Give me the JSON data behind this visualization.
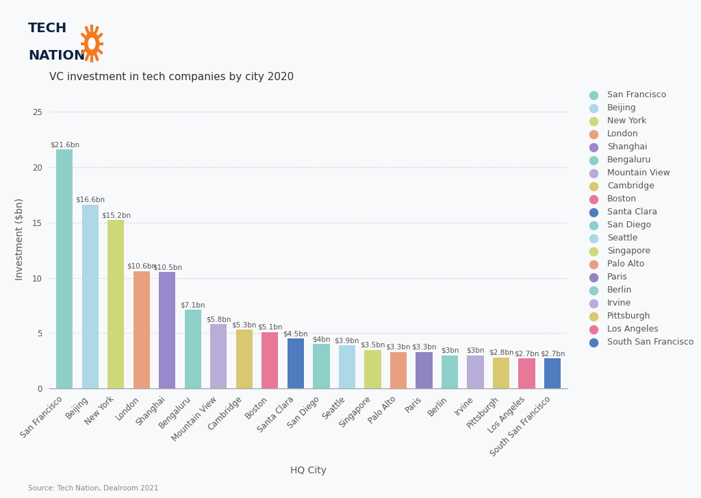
{
  "title": "VC investment in tech companies by city 2020",
  "xlabel": "HQ City",
  "ylabel": "Investment ($bn)",
  "source": "Source: Tech Nation, Dealroom 2021",
  "ylim": [
    0,
    27
  ],
  "yticks": [
    0,
    5,
    10,
    15,
    20,
    25
  ],
  "background_color": "#f8f9fb",
  "cities": [
    "San Francisco",
    "Beijing",
    "New York",
    "London",
    "Shanghai",
    "Bengaluru",
    "Mountain View",
    "Cambridge",
    "Boston",
    "Santa Clara",
    "San Diego",
    "Seattle",
    "Singapore",
    "Palo Alto",
    "Paris",
    "Berlin",
    "Irvine",
    "Pittsburgh",
    "Los Angeles",
    "South San Francisco"
  ],
  "values": [
    21.6,
    16.6,
    15.2,
    10.6,
    10.5,
    7.1,
    5.8,
    5.3,
    5.1,
    4.5,
    4.0,
    3.9,
    3.5,
    3.3,
    3.3,
    3.0,
    3.0,
    2.8,
    2.7,
    2.7
  ],
  "labels": [
    "$21.6bn",
    "$16.6bn",
    "$15.2bn",
    "$10.6bn",
    "$10.5bn",
    "$7.1bn",
    "$5.8bn",
    "$5.3bn",
    "$5.1bn",
    "$4.5bn",
    "$4bn",
    "$3.9bn",
    "$3.5bn",
    "$3.3bn",
    "$3.3bn",
    "$3bn",
    "$3bn",
    "$2.8bn",
    "$2.7bn",
    "$2.7bn"
  ],
  "colors": [
    "#8ecfc9",
    "#acd8e8",
    "#cdd87a",
    "#e8a080",
    "#9988cc",
    "#8ecfc9",
    "#b8acd8",
    "#d8c870",
    "#e87898",
    "#4f7bbf",
    "#8ecfc9",
    "#acd8e8",
    "#cdd87a",
    "#e8a080",
    "#9085bf",
    "#8ecfc9",
    "#b8acd8",
    "#d8c870",
    "#e87898",
    "#4f7bbf"
  ],
  "legend_colors": [
    "#8ecfc9",
    "#acd8e8",
    "#cdd87a",
    "#e8a080",
    "#9988cc",
    "#8ecfc9",
    "#b8acd8",
    "#d8c870",
    "#e87898",
    "#4f7bbf",
    "#8ecfc9",
    "#acd8e8",
    "#cdd87a",
    "#e8a080",
    "#9085bf",
    "#8ecfc9",
    "#b8acd8",
    "#d8c870",
    "#e87898",
    "#4f7bbf"
  ],
  "grid_color": "#c0c0c8",
  "title_color": "#333333",
  "label_color": "#555555",
  "tick_color": "#555555",
  "bar_label_fontsize": 7.5,
  "title_fontsize": 11,
  "axis_label_fontsize": 10,
  "tick_fontsize": 8.5,
  "legend_fontsize": 9,
  "logo_text_color": "#0d2240"
}
